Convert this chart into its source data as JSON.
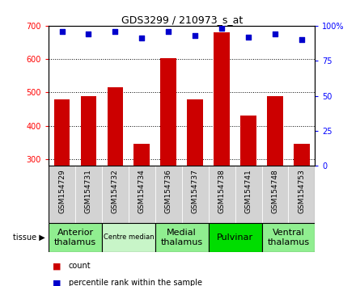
{
  "title": "GDS3299 / 210973_s_at",
  "samples": [
    "GSM154729",
    "GSM154731",
    "GSM154732",
    "GSM154734",
    "GSM154736",
    "GSM154737",
    "GSM154738",
    "GSM154741",
    "GSM154748",
    "GSM154753"
  ],
  "counts": [
    480,
    490,
    515,
    347,
    603,
    480,
    680,
    432,
    490,
    347
  ],
  "percentiles": [
    96,
    94,
    96,
    91,
    96,
    93,
    98,
    92,
    94,
    90
  ],
  "ylim_left": [
    280,
    700
  ],
  "ylim_right": [
    0,
    100
  ],
  "yticks_left": [
    300,
    400,
    500,
    600,
    700
  ],
  "yticks_right": [
    0,
    25,
    50,
    75,
    100
  ],
  "bar_color": "#cc0000",
  "scatter_color": "#0000cc",
  "tissue_groups": [
    {
      "label": "Anterior\nthalamus",
      "indices": [
        0,
        1
      ],
      "color": "#90ee90",
      "fontsize": 8
    },
    {
      "label": "Centre median",
      "indices": [
        2,
        3
      ],
      "color": "#c8f5c8",
      "fontsize": 6
    },
    {
      "label": "Medial\nthalamus",
      "indices": [
        4,
        5
      ],
      "color": "#90ee90",
      "fontsize": 8
    },
    {
      "label": "Pulvinar",
      "indices": [
        6,
        7
      ],
      "color": "#00dd00",
      "fontsize": 8
    },
    {
      "label": "Ventral\nthalamus",
      "indices": [
        8,
        9
      ],
      "color": "#90ee90",
      "fontsize": 8
    }
  ],
  "tissue_label": "tissue",
  "legend_count_label": "count",
  "legend_percentile_label": "percentile rank within the sample",
  "bg_color": "#ffffff",
  "xticklabel_bg": "#d3d3d3",
  "xticklabel_fontsize": 6.5
}
